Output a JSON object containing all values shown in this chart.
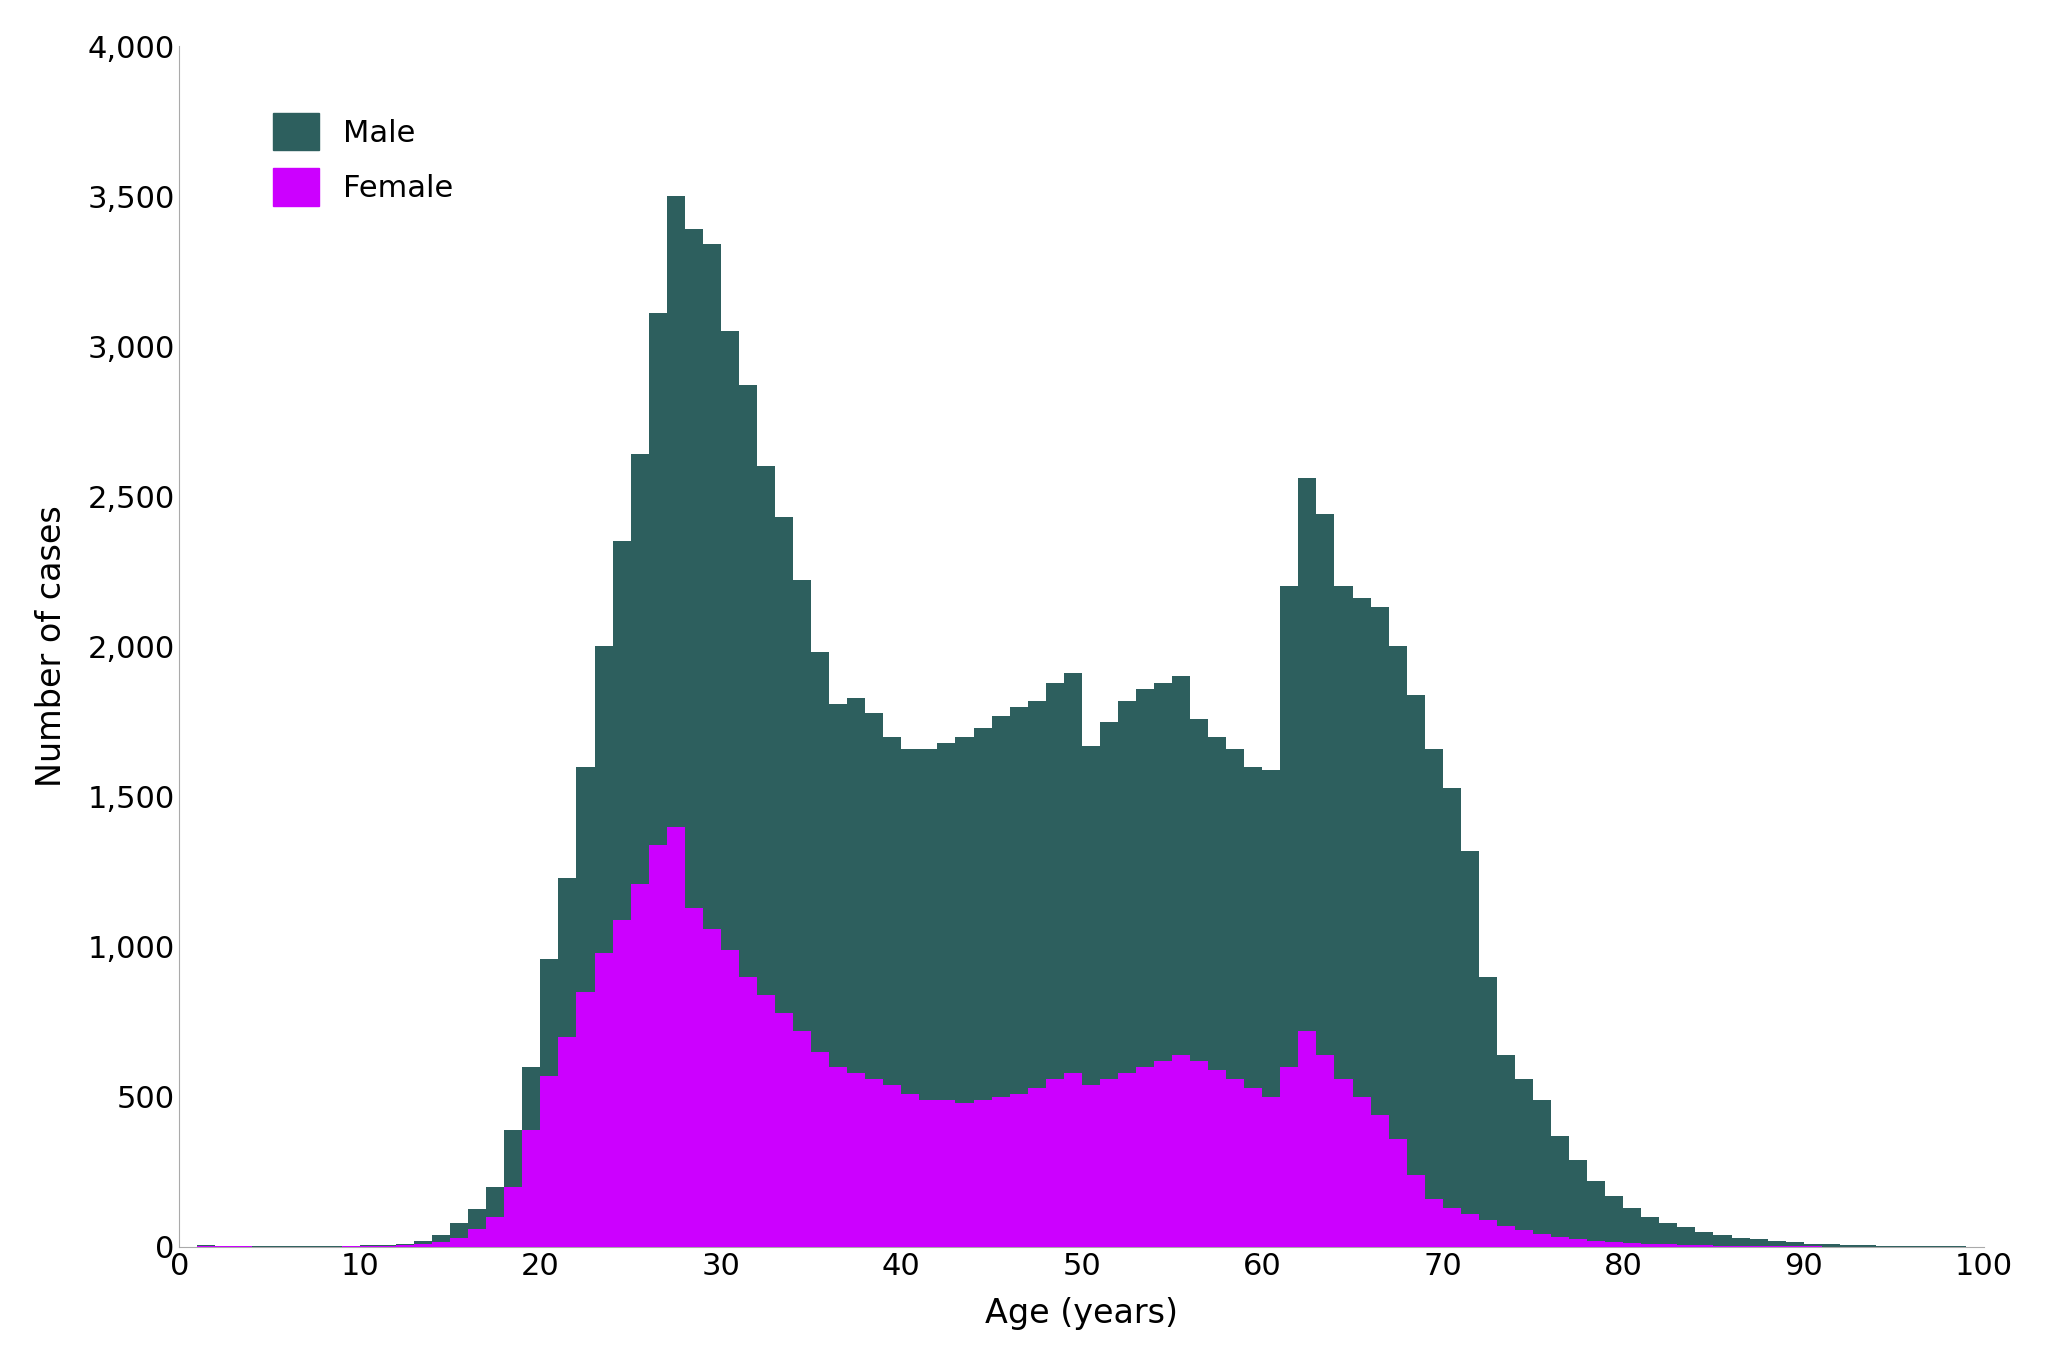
{
  "male": [
    0,
    5,
    2,
    1,
    1,
    1,
    1,
    1,
    1,
    2,
    5,
    5,
    10,
    20,
    40,
    80,
    125,
    200,
    390,
    600,
    960,
    1230,
    1600,
    2000,
    2350,
    2640,
    3110,
    3500,
    3390,
    3340,
    3050,
    2870,
    2600,
    2430,
    2220,
    1980,
    1810,
    1830,
    1780,
    1700,
    1660,
    1660,
    1680,
    1700,
    1730,
    1770,
    1800,
    1820,
    1880,
    1910,
    1670,
    1750,
    1820,
    1860,
    1880,
    1900,
    1760,
    1700,
    1660,
    1600,
    1590,
    2200,
    2560,
    2440,
    2200,
    2160,
    2130,
    2000,
    1840,
    1660,
    1530,
    1320,
    900,
    640,
    560,
    490,
    370,
    290,
    220,
    170,
    130,
    100,
    80,
    65,
    50,
    40,
    30,
    25,
    20,
    15,
    10,
    8,
    6,
    5,
    4,
    3,
    2,
    2,
    1,
    0,
    0
  ],
  "female": [
    0,
    2,
    1,
    1,
    0,
    0,
    0,
    0,
    0,
    1,
    2,
    2,
    5,
    10,
    15,
    30,
    60,
    100,
    200,
    390,
    570,
    700,
    850,
    980,
    1090,
    1210,
    1340,
    1400,
    1130,
    1060,
    990,
    900,
    840,
    780,
    720,
    650,
    600,
    580,
    560,
    540,
    510,
    490,
    490,
    480,
    490,
    500,
    510,
    530,
    560,
    580,
    540,
    560,
    580,
    600,
    620,
    640,
    620,
    590,
    560,
    530,
    500,
    600,
    720,
    640,
    560,
    500,
    440,
    360,
    240,
    160,
    130,
    110,
    90,
    70,
    55,
    42,
    32,
    25,
    20,
    15,
    12,
    10,
    8,
    6,
    5,
    4,
    3,
    2,
    2,
    1,
    1,
    0,
    0,
    0,
    0,
    0,
    0,
    0,
    0,
    0,
    0
  ],
  "male_color": "#2d5f5e",
  "female_color": "#cc00ff",
  "xlabel": "Age (years)",
  "ylabel": "Number of cases",
  "ylim": [
    0,
    4000
  ],
  "xlim": [
    0,
    100
  ],
  "yticks": [
    0,
    500,
    1000,
    1500,
    2000,
    2500,
    3000,
    3500,
    4000
  ],
  "xticks": [
    0,
    10,
    20,
    30,
    40,
    50,
    60,
    70,
    80,
    90,
    100
  ],
  "legend_male": "Male",
  "legend_female": "Female",
  "background_color": "#ffffff"
}
